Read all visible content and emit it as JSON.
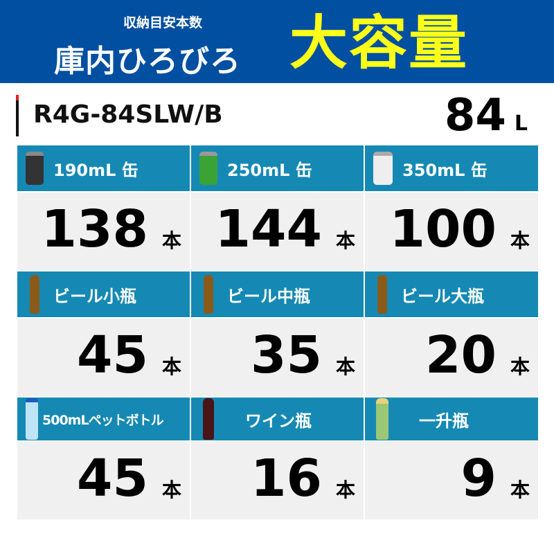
{
  "banner": {
    "subtitle": "収納目安本数",
    "catch": "庫内ひろびろ",
    "headline": "大容量"
  },
  "model": {
    "name": "R4G-84SLW/B",
    "capacity": "84",
    "capacity_unit": "L"
  },
  "unit": "本",
  "items": [
    {
      "label": "190mL 缶",
      "count": "138",
      "icon": "coffee-can-icon"
    },
    {
      "label": "250mL 缶",
      "count": "144",
      "icon": "cider-can-icon"
    },
    {
      "label": "350mL 缶",
      "count": "100",
      "icon": "beer-can-icon"
    },
    {
      "label": "ビール小瓶",
      "count": "45",
      "icon": "beer-bottle-icon"
    },
    {
      "label": "ビール中瓶",
      "count": "35",
      "icon": "beer-bottle-icon"
    },
    {
      "label": "ビール大瓶",
      "count": "20",
      "icon": "beer-bottle-icon"
    },
    {
      "label": "500mLペットボトル",
      "count": "45",
      "icon": "pet-bottle-icon"
    },
    {
      "label": "ワイン瓶",
      "count": "16",
      "icon": "wine-bottle-icon"
    },
    {
      "label": "一升瓶",
      "count": "9",
      "icon": "sake-bottle-icon"
    }
  ],
  "colors": {
    "banner": "#004fa0",
    "headline": "#ffff1a",
    "cell_header": "#1589b4",
    "cell_body": "#f0f0f0"
  }
}
